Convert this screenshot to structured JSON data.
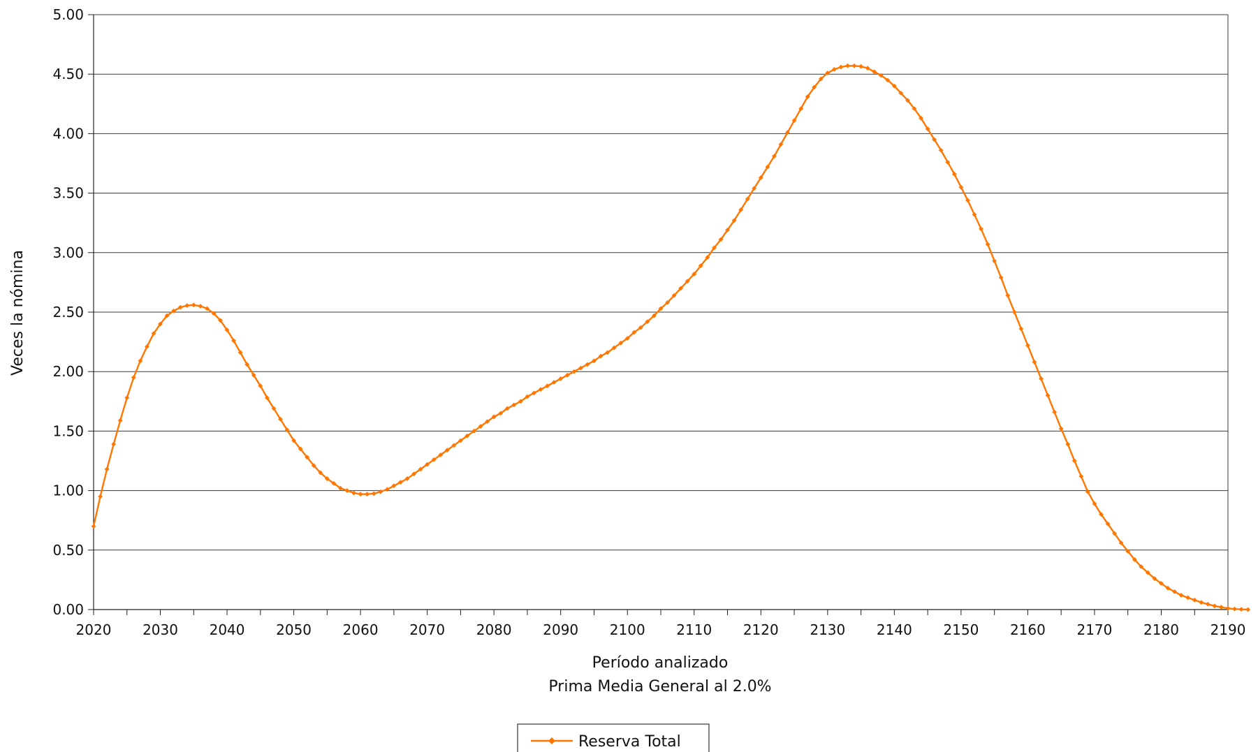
{
  "chart_data": {
    "type": "line",
    "xlabel": "Período analizado",
    "subtitle": "Prima Media General al 2.0%",
    "ylabel": "Veces la nómina",
    "xlim": [
      2020,
      2190
    ],
    "ylim": [
      0,
      5
    ],
    "x_ticks": [
      2020,
      2030,
      2040,
      2050,
      2060,
      2070,
      2080,
      2090,
      2100,
      2110,
      2120,
      2130,
      2140,
      2150,
      2160,
      2170,
      2180,
      2190
    ],
    "y_ticks": [
      "0.00",
      "0.50",
      "1.00",
      "1.50",
      "2.00",
      "2.50",
      "3.00",
      "3.50",
      "4.00",
      "4.50",
      "5.00"
    ],
    "grid": "horizontal",
    "legend_position": "bottom-center",
    "series": [
      {
        "name": "Reserva Total",
        "color": "#ff7700",
        "marker": "diamond",
        "x_start": 2020,
        "x_step": 1,
        "values": [
          0.7,
          0.95,
          1.18,
          1.39,
          1.59,
          1.78,
          1.95,
          2.09,
          2.21,
          2.32,
          2.4,
          2.47,
          2.51,
          2.54,
          2.555,
          2.56,
          2.55,
          2.53,
          2.49,
          2.43,
          2.35,
          2.26,
          2.16,
          2.06,
          1.97,
          1.88,
          1.78,
          1.69,
          1.6,
          1.51,
          1.42,
          1.35,
          1.28,
          1.21,
          1.15,
          1.1,
          1.06,
          1.02,
          1.0,
          0.98,
          0.97,
          0.97,
          0.975,
          0.99,
          1.01,
          1.04,
          1.07,
          1.1,
          1.14,
          1.18,
          1.22,
          1.26,
          1.3,
          1.34,
          1.38,
          1.42,
          1.46,
          1.5,
          1.54,
          1.58,
          1.62,
          1.65,
          1.69,
          1.72,
          1.75,
          1.79,
          1.82,
          1.85,
          1.88,
          1.91,
          1.94,
          1.97,
          2.0,
          2.03,
          2.06,
          2.09,
          2.13,
          2.16,
          2.2,
          2.24,
          2.28,
          2.33,
          2.37,
          2.42,
          2.47,
          2.53,
          2.58,
          2.64,
          2.7,
          2.76,
          2.82,
          2.89,
          2.96,
          3.04,
          3.11,
          3.19,
          3.27,
          3.36,
          3.45,
          3.54,
          3.63,
          3.72,
          3.81,
          3.91,
          4.01,
          4.11,
          4.21,
          4.31,
          4.39,
          4.46,
          4.51,
          4.54,
          4.56,
          4.57,
          4.57,
          4.565,
          4.55,
          4.52,
          4.49,
          4.45,
          4.4,
          4.34,
          4.28,
          4.21,
          4.13,
          4.04,
          3.95,
          3.86,
          3.76,
          3.66,
          3.55,
          3.44,
          3.32,
          3.2,
          3.07,
          2.93,
          2.79,
          2.64,
          2.5,
          2.36,
          2.22,
          2.08,
          1.94,
          1.8,
          1.66,
          1.52,
          1.39,
          1.25,
          1.12,
          0.99,
          0.89,
          0.8,
          0.72,
          0.64,
          0.56,
          0.49,
          0.42,
          0.36,
          0.31,
          0.26,
          0.22,
          0.18,
          0.15,
          0.12,
          0.1,
          0.08,
          0.06,
          0.045,
          0.03,
          0.02,
          0.01,
          0.005,
          0.002,
          0.0
        ]
      }
    ]
  }
}
